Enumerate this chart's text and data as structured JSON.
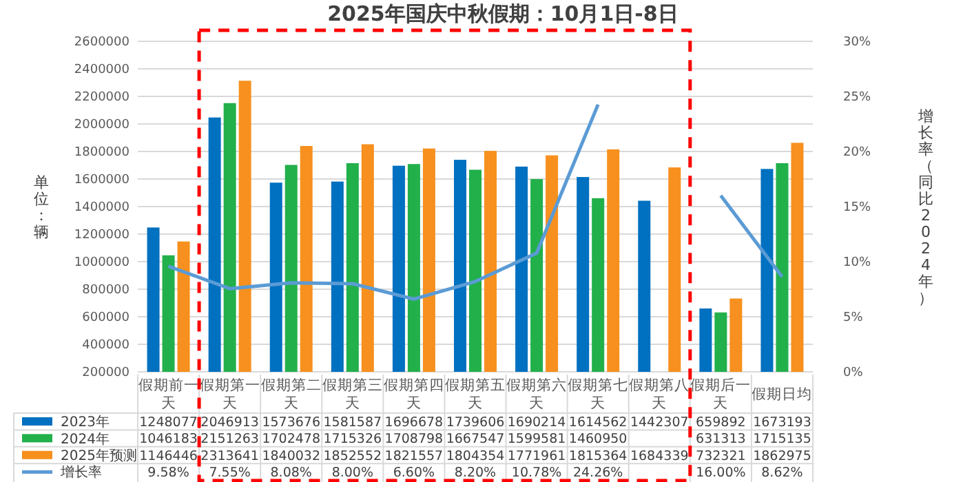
{
  "chart_data": {
    "type": "bar",
    "title": "2025年国庆中秋假期：10月1日-8日",
    "ylabel": "单位：辆",
    "y2label": "增长率（同比2024年）",
    "categories": [
      "假期前一天",
      "假期第一天",
      "假期第二天",
      "假期第三天",
      "假期第四天",
      "假期第五天",
      "假期第六天",
      "假期第七天",
      "假期第八天",
      "假期后一天",
      "假期日均"
    ],
    "series": [
      {
        "name": "2023年",
        "color": "#0070c0",
        "values": [
          1248077,
          2046913,
          1573676,
          1581587,
          1696678,
          1739606,
          1690214,
          1614562,
          1442307,
          659892,
          1673193
        ]
      },
      {
        "name": "2024年",
        "color": "#22b04b",
        "values": [
          1046183,
          2151263,
          1702478,
          1715326,
          1708798,
          1667547,
          1599581,
          1460950,
          null,
          631313,
          1715135
        ]
      },
      {
        "name": "2025年预测",
        "color": "#f7901e",
        "values": [
          1146446,
          2313641,
          1840032,
          1852552,
          1821557,
          1804354,
          1771961,
          1815364,
          1684339,
          732321,
          1862975
        ]
      },
      {
        "name": "增长率",
        "type": "line",
        "axis": "y2",
        "color": "#5b9bd5",
        "values": [
          9.58,
          7.55,
          8.08,
          8.0,
          6.6,
          8.2,
          10.78,
          24.26,
          null,
          16.0,
          8.62
        ],
        "value_labels": [
          "9.58%",
          "7.55%",
          "8.08%",
          "8.00%",
          "6.60%",
          "8.20%",
          "10.78%",
          "24.26%",
          null,
          "16.00%",
          "8.62%"
        ]
      }
    ],
    "ylim": [
      200000,
      2600000
    ],
    "yticks": [
      200000,
      400000,
      600000,
      800000,
      1000000,
      1200000,
      1400000,
      1600000,
      1800000,
      2000000,
      2200000,
      2400000,
      2600000
    ],
    "y2lim": [
      0,
      30
    ],
    "y2ticks": [
      {
        "value": 0,
        "label": "0%"
      },
      {
        "value": 5,
        "label": "5%"
      },
      {
        "value": 10,
        "label": "10%"
      },
      {
        "value": 15,
        "label": "15%"
      },
      {
        "value": 20,
        "label": "20%"
      },
      {
        "value": 25,
        "label": "25%"
      },
      {
        "value": 30,
        "label": "30%"
      }
    ],
    "grid": "y",
    "legend": "bottom",
    "data_labels": true,
    "marker": "none",
    "line_style": "solid"
  }
}
